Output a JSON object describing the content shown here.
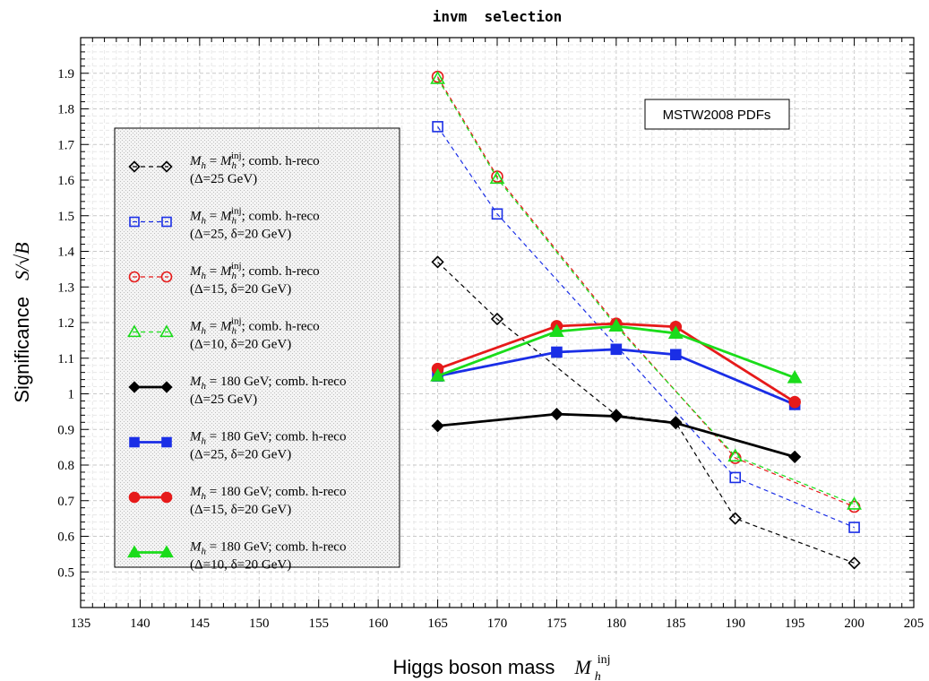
{
  "chart_data": {
    "type": "line",
    "title": "invm  selection",
    "xlabel": "Higgs boson mass",
    "xlabel_symbol": "M",
    "xlabel_sub": "h",
    "xlabel_sup": "inj",
    "ylabel": "Significance",
    "ylabel_symbol": "S/√B",
    "xlim": [
      135,
      205
    ],
    "ylim": [
      0.4,
      2.0
    ],
    "xticks": [
      135,
      140,
      145,
      150,
      155,
      160,
      165,
      170,
      175,
      180,
      185,
      190,
      195,
      200,
      205
    ],
    "yticks": [
      0.5,
      0.6,
      0.7,
      0.8,
      0.9,
      1,
      1.1,
      1.2,
      1.3,
      1.4,
      1.5,
      1.6,
      1.7,
      1.8,
      1.9
    ],
    "grid": true,
    "annotation": "MSTW2008 PDFs",
    "legend_position": "left",
    "series": [
      {
        "line1_main": "M",
        "line1_sub": "h",
        "line1_rest": " = ",
        "line1_mhinj": true,
        "line1_tail": ";  comb. h-reco",
        "line2": "(Δ=25 GeV)",
        "color": "#000000",
        "marker": "diamond",
        "filled": false,
        "dashed": true,
        "x": [
          165,
          170,
          180,
          185,
          190,
          200
        ],
        "y": [
          1.37,
          1.21,
          0.94,
          0.92,
          0.65,
          0.525
        ]
      },
      {
        "line1_main": "M",
        "line1_sub": "h",
        "line1_rest": " = ",
        "line1_mhinj": true,
        "line1_tail": ";  comb. h-reco",
        "line2": "(Δ=25, δ=20 GeV)",
        "color": "#1a2ee6",
        "marker": "square",
        "filled": false,
        "dashed": true,
        "x": [
          165,
          170,
          190,
          200
        ],
        "y": [
          1.75,
          1.505,
          0.765,
          0.625
        ]
      },
      {
        "line1_main": "M",
        "line1_sub": "h",
        "line1_rest": " = ",
        "line1_mhinj": true,
        "line1_tail": ";  comb. h-reco",
        "line2": "(Δ=15, δ=20 GeV)",
        "color": "#e61a1a",
        "marker": "circle",
        "filled": false,
        "dashed": true,
        "x": [
          165,
          170,
          180,
          190,
          200
        ],
        "y": [
          1.89,
          1.61,
          1.195,
          0.82,
          0.683
        ]
      },
      {
        "line1_main": "M",
        "line1_sub": "h",
        "line1_rest": " = ",
        "line1_mhinj": true,
        "line1_tail": ";  comb. h-reco",
        "line2": "(Δ=10, δ=20 GeV)",
        "color": "#1adc1a",
        "marker": "triangle",
        "filled": false,
        "dashed": true,
        "x": [
          165,
          170,
          180,
          190,
          200
        ],
        "y": [
          1.885,
          1.605,
          1.19,
          0.825,
          0.69
        ]
      },
      {
        "line1_main": "M",
        "line1_sub": "h",
        "line1_rest": " = 180 GeV;   comb. h-reco",
        "line1_mhinj": false,
        "line1_tail": "",
        "line2": "(Δ=25 GeV)",
        "color": "#000000",
        "marker": "diamond",
        "filled": true,
        "dashed": false,
        "x": [
          165,
          175,
          180,
          185,
          195
        ],
        "y": [
          0.91,
          0.943,
          0.937,
          0.918,
          0.823
        ]
      },
      {
        "line1_main": "M",
        "line1_sub": "h",
        "line1_rest": " = 180 GeV;  comb. h-reco",
        "line1_mhinj": false,
        "line1_tail": "",
        "line2": "(Δ=25, δ=20 GeV)",
        "color": "#1a2ee6",
        "marker": "square",
        "filled": true,
        "dashed": false,
        "x": [
          165,
          175,
          180,
          185,
          195
        ],
        "y": [
          1.05,
          1.117,
          1.125,
          1.11,
          0.97
        ]
      },
      {
        "line1_main": "M",
        "line1_sub": "h",
        "line1_rest": " = 180 GeV;   comb. h-reco",
        "line1_mhinj": false,
        "line1_tail": "",
        "line2": "(Δ=15, δ=20 GeV)",
        "color": "#e61a1a",
        "marker": "circle",
        "filled": true,
        "dashed": false,
        "x": [
          165,
          175,
          180,
          185,
          195
        ],
        "y": [
          1.07,
          1.19,
          1.197,
          1.188,
          0.977
        ]
      },
      {
        "line1_main": "M",
        "line1_sub": "h",
        "line1_rest": " = 180 GeV;   comb. h-reco",
        "line1_mhinj": false,
        "line1_tail": "",
        "line2": "(Δ=10, δ=20 GeV)",
        "color": "#1adc1a",
        "marker": "triangle",
        "filled": true,
        "dashed": false,
        "x": [
          165,
          175,
          180,
          185,
          195
        ],
        "y": [
          1.05,
          1.175,
          1.19,
          1.17,
          1.045
        ]
      }
    ]
  }
}
